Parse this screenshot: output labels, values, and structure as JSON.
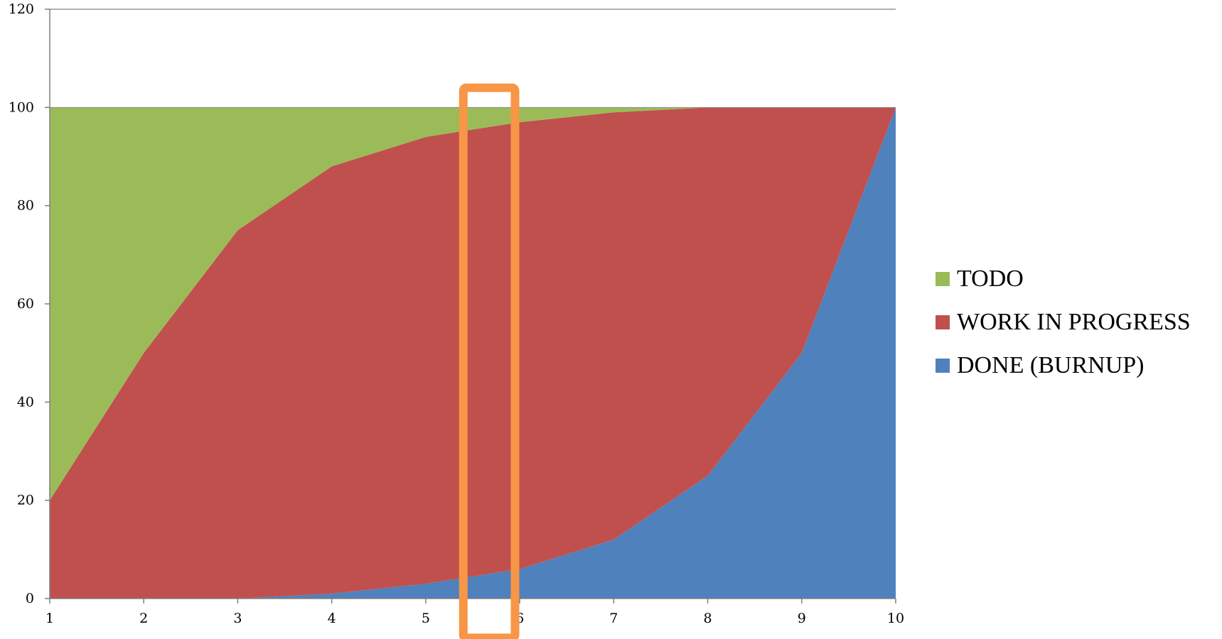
{
  "chart_data": {
    "type": "area",
    "stacked": true,
    "x": [
      1,
      2,
      3,
      4,
      5,
      6,
      7,
      8,
      9,
      10
    ],
    "series": [
      {
        "name": "DONE (BURNUP)",
        "color": "#4f81bd",
        "values": [
          0,
          0,
          0,
          1,
          3,
          6,
          12,
          25,
          50,
          100
        ]
      },
      {
        "name": "WORK IN PROGRESS",
        "color": "#c0504d",
        "values": [
          20,
          50,
          75,
          87,
          91,
          91,
          87,
          75,
          50,
          0
        ]
      },
      {
        "name": "TODO",
        "color": "#9bbb59",
        "values": [
          80,
          50,
          25,
          12,
          6,
          3,
          1,
          0,
          0,
          0
        ]
      }
    ],
    "ylim": [
      0,
      120
    ],
    "yticks": [
      0,
      20,
      40,
      60,
      80,
      100,
      120
    ],
    "xticks": [
      1,
      2,
      3,
      4,
      5,
      6,
      7,
      8,
      9,
      10
    ],
    "grid": false,
    "legend_position": "right",
    "legend": [
      "TODO",
      "WORK IN PROGRESS",
      "DONE (BURNUP)"
    ],
    "annotations": [
      {
        "type": "highlight-rectangle",
        "color": "#f79646",
        "x_range": [
          5.4,
          5.95
        ],
        "y_range": [
          -8,
          104
        ]
      }
    ]
  }
}
